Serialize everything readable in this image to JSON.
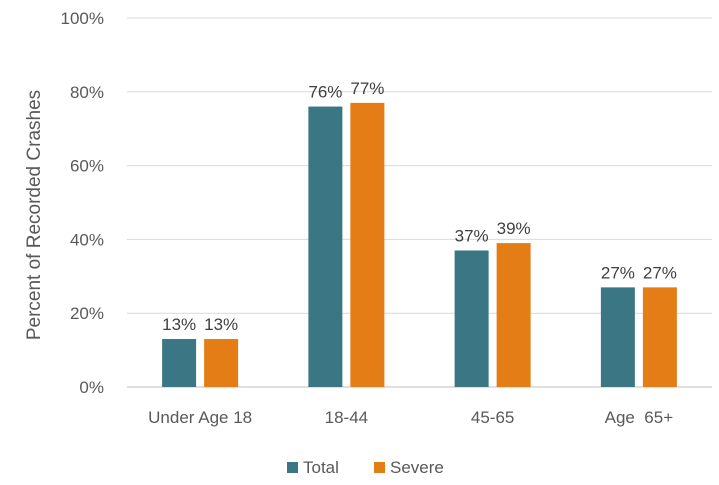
{
  "chart_data": {
    "type": "bar",
    "title": "",
    "xlabel": "",
    "ylabel": "Percent of Recorded Crashes",
    "categories": [
      "Under Age 18",
      "18-44",
      "45-65",
      "Age  65+"
    ],
    "series": [
      {
        "name": "Total",
        "color": "#3b7684",
        "values": [
          13,
          76,
          37,
          27
        ],
        "labels": [
          "13%",
          "76%",
          "37%",
          "27%"
        ]
      },
      {
        "name": "Severe",
        "color": "#e57d16",
        "values": [
          13,
          77,
          39,
          27
        ],
        "labels": [
          "13%",
          "77%",
          "39%",
          "27%"
        ]
      }
    ],
    "ylim": [
      0,
      100
    ],
    "yticks": [
      0,
      20,
      40,
      60,
      80,
      100
    ],
    "ytick_labels": [
      "0%",
      "20%",
      "40%",
      "60%",
      "80%",
      "100%"
    ],
    "grid": true,
    "legend_position": "bottom"
  }
}
